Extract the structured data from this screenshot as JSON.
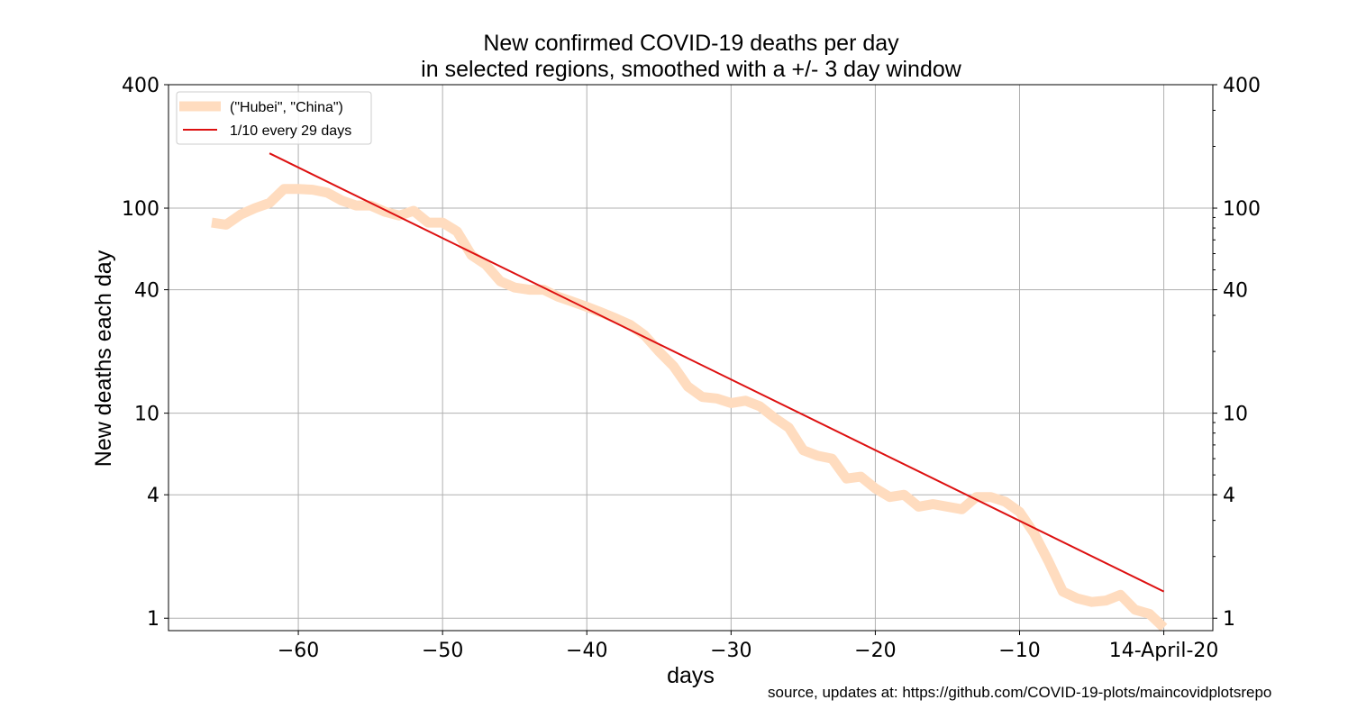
{
  "chart_data": {
    "type": "line",
    "title_lines": [
      "New confirmed COVID-19 deaths per day",
      "in selected regions, smoothed with a +/- 3 day window"
    ],
    "xlabel": "days",
    "ylabel": "New deaths each day",
    "x_scale": "linear",
    "y_scale": "log",
    "xlim": [
      -69,
      3.4
    ],
    "ylim": [
      0.87,
      400
    ],
    "x_ticks": [
      -60,
      -50,
      -40,
      -30,
      -20,
      -10,
      0
    ],
    "x_tick_labels": [
      "−60",
      "−50",
      "−40",
      "−30",
      "−20",
      "−10",
      "14-April-20"
    ],
    "y_ticks": [
      1,
      4,
      10,
      40,
      100,
      400
    ],
    "y_tick_labels": [
      "1",
      "4",
      "10",
      "40",
      "100",
      "400"
    ],
    "grid": true,
    "legend_position": "top-left",
    "series": [
      {
        "name": "(\"Hubei\", \"China\")",
        "color": "#ffdcbf",
        "x": [
          -66,
          -65,
          -64,
          -63,
          -62,
          -61,
          -60,
          -59,
          -58,
          -57,
          -56,
          -55,
          -54,
          -53,
          -52,
          -51,
          -50,
          -49,
          -48,
          -47,
          -46,
          -45,
          -44,
          -43,
          -42,
          -41,
          -40,
          -39,
          -38,
          -37,
          -36,
          -35,
          -34,
          -33,
          -32,
          -31,
          -30,
          -29,
          -28,
          -27,
          -26,
          -25,
          -24,
          -23,
          -22,
          -21,
          -20,
          -19,
          -18,
          -17,
          -16,
          -15,
          -14,
          -13,
          -12,
          -11,
          -10,
          -9,
          -8,
          -7,
          -6,
          -5,
          -4,
          -3,
          -2,
          -1,
          0
        ],
        "values": [
          85,
          83,
          93,
          100,
          106,
          124,
          124,
          123,
          119,
          109,
          103,
          103,
          96,
          92,
          97,
          85,
          85,
          77,
          59,
          53,
          44,
          41,
          40,
          40,
          37,
          35,
          33,
          31,
          29,
          27,
          24,
          20,
          17,
          13.5,
          12,
          11.8,
          11.2,
          11.5,
          10.8,
          9.5,
          8.5,
          6.6,
          6.2,
          6,
          4.8,
          4.9,
          4.3,
          3.9,
          4,
          3.5,
          3.6,
          3.5,
          3.4,
          3.9,
          3.9,
          3.7,
          3.3,
          2.6,
          1.9,
          1.35,
          1.25,
          1.2,
          1.22,
          1.3,
          1.1,
          1.05,
          0.9
        ]
      },
      {
        "name": "1/10 every 29 days",
        "color": "#dd1111",
        "x": [
          -62,
          0
        ],
        "values": [
          185,
          1.35
        ]
      }
    ]
  },
  "source_text": "source, updates at: https://github.com/COVID-19-plots/maincovidplotsrepo"
}
